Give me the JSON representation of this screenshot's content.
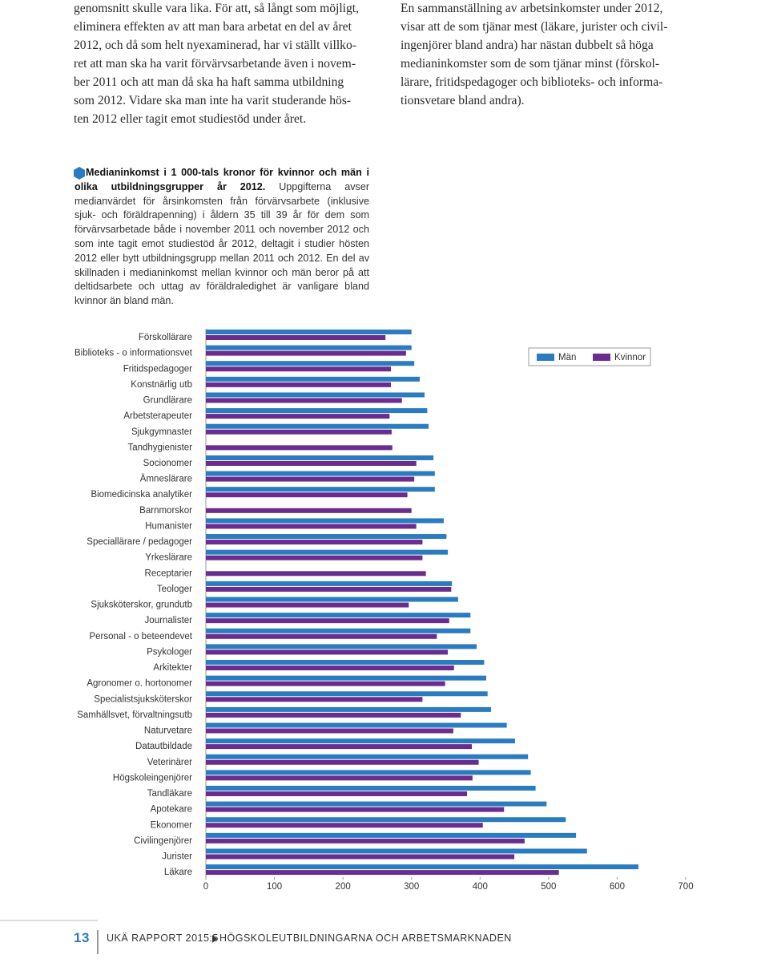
{
  "left_column": {
    "lines": [
      "genomsnitt skulle vara lika. För att, så långt som möjligt,",
      "eliminera effekten av att man bara arbetat en del av året",
      "2012, och då som helt nyexaminerad, har vi ställt villko-",
      "ret att man ska ha varit förvärvsarbetande även i novem-",
      "ber 2011 och att man då ska ha haft samma utbildning",
      "som 2012. Vidare ska man inte ha varit studerande hös-",
      "ten 2012 eller tagit emot studiestöd under året."
    ]
  },
  "right_column": {
    "lines": [
      "En sammanställning av arbetsinkomster under 2012,",
      "visar att de som tjänar mest (läkare, jurister och civil-",
      "ingenjörer bland andra) har nästan dubbelt så höga",
      "medianinkomster som de som tjänar minst (förskol-",
      "lärare, fritidspedagoger och biblioteks- och informa-",
      "tionsvetare bland andra)."
    ]
  },
  "caption": {
    "title": "Medianinkomst i 1 000-tals kronor för kvinnor och män i olika utbildningsgrupper år 2012.",
    "text": "Uppgifterna avser medianvärdet för årsinkomsten från förvärvsarbete (inklusive sjuk- och föräldrapenning) i åldern 35 till 39 år för dem som förvärvsarbetade både i november 2011 och november 2012 och som inte tagit emot studiestöd år 2012, deltagit i studier hösten 2012 eller bytt utbildningsgrupp mellan 2011 och 2012. En del av skillnaden i medianinkomst mellan kvinnor och män beror på att deltidsarbete och uttag av föräldraledighet är vanligare bland kvinnor än bland män."
  },
  "chart_data": {
    "type": "bar",
    "orientation": "horizontal",
    "categories": [
      "Förskollärare",
      "Biblioteks - o informationsvet",
      "Fritidspedagoger",
      "Konstnärlig utb",
      "Grundlärare",
      "Arbetsterapeuter",
      "Sjukgymnaster",
      "Tandhygienister",
      "Socionomer",
      "Ämneslärare",
      "Biomedicinska analytiker",
      "Barnmorskor",
      "Humanister",
      "Speciallärare / pedagoger",
      "Yrkeslärare",
      "Receptarier",
      "Teologer",
      "Sjuksköterskor, grundutb",
      "Journalister",
      "Personal - o beteendevet",
      "Psykologer",
      "Arkitekter",
      "Agronomer o. hortonomer",
      "Specialistsjuksköterskor",
      "Samhällsvet, förvaltningsutb",
      "Naturvetare",
      "Datautbildade",
      "Veterinärer",
      "Högskoleingenjörer",
      "Tandläkare",
      "Apotekare",
      "Ekonomer",
      "Civilingenjörer",
      "Jurister",
      "Läkare"
    ],
    "series": [
      {
        "name": "Män",
        "color": "#2a7bc0",
        "values": [
          300,
          300,
          304,
          312,
          319,
          323,
          325,
          null,
          332,
          334,
          334,
          null,
          347,
          351,
          353,
          null,
          359,
          368,
          386,
          386,
          395,
          406,
          409,
          411,
          416,
          439,
          451,
          470,
          474,
          481,
          497,
          525,
          540,
          556,
          631
        ]
      },
      {
        "name": "Kvinnor",
        "color": "#6a2c8e",
        "values": [
          262,
          292,
          270,
          270,
          286,
          268,
          271,
          272,
          307,
          304,
          294,
          300,
          307,
          316,
          316,
          321,
          358,
          296,
          355,
          337,
          353,
          362,
          349,
          316,
          372,
          361,
          388,
          398,
          389,
          381,
          435,
          404,
          465,
          450,
          515
        ]
      }
    ],
    "xlim": [
      0,
      700
    ],
    "xticks": [
      0,
      100,
      200,
      300,
      400,
      500,
      600,
      700
    ],
    "legend": "top-right"
  },
  "footer": {
    "page": "13",
    "report": "UKÄ RAPPORT 2015:5",
    "section": "HÖGSKOLEUTBILDNINGARNA OCH ARBETSMARKNADEN"
  }
}
